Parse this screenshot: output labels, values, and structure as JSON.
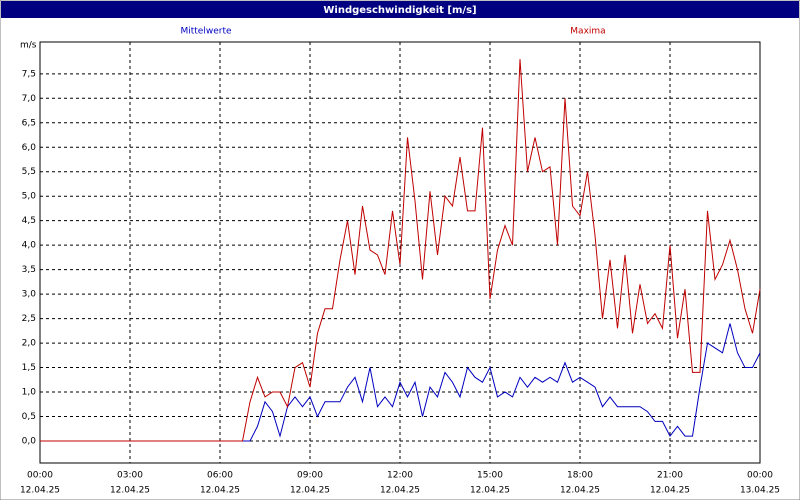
{
  "chart_data": {
    "type": "line",
    "title": "Windgeschwindigkeit [m/s]",
    "y_unit": "m/s",
    "x": [
      0,
      6.75,
      7,
      7.25,
      7.5,
      7.75,
      8,
      8.25,
      8.5,
      8.75,
      9,
      9.25,
      9.5,
      9.75,
      10,
      10.25,
      10.5,
      10.75,
      11,
      11.25,
      11.5,
      11.75,
      12,
      12.25,
      12.5,
      12.75,
      13,
      13.25,
      13.5,
      13.75,
      14,
      14.25,
      14.5,
      14.75,
      15,
      15.25,
      15.5,
      15.75,
      16,
      16.25,
      16.5,
      16.75,
      17,
      17.25,
      17.5,
      17.75,
      18,
      18.25,
      18.5,
      18.75,
      19,
      19.25,
      19.5,
      19.75,
      20,
      20.25,
      20.5,
      20.75,
      21,
      21.25,
      21.5,
      21.75,
      22,
      22.25,
      22.5,
      22.75,
      23,
      23.25,
      23.5,
      23.75,
      24
    ],
    "series": [
      {
        "name": "Mittelwerte",
        "color": "#0000c0",
        "values": [
          0,
          0,
          0,
          0.3,
          0.8,
          0.6,
          0.1,
          0.7,
          0.9,
          0.7,
          0.9,
          0.5,
          0.8,
          0.8,
          0.8,
          1.1,
          1.3,
          0.8,
          1.5,
          0.7,
          0.9,
          0.7,
          1.2,
          0.9,
          1.2,
          0.5,
          1.1,
          0.9,
          1.4,
          1.2,
          0.9,
          1.5,
          1.3,
          1.2,
          1.5,
          0.9,
          1.0,
          0.9,
          1.3,
          1.1,
          1.3,
          1.2,
          1.3,
          1.2,
          1.6,
          1.2,
          1.3,
          1.2,
          1.1,
          0.7,
          0.9,
          0.7,
          0.7,
          0.7,
          0.7,
          0.6,
          0.4,
          0.4,
          0.1,
          0.3,
          0.1,
          0.1,
          1.1,
          2.0,
          1.9,
          1.8,
          2.4,
          1.8,
          1.5,
          1.5,
          1.8
        ]
      },
      {
        "name": "Maxima",
        "color": "#c00000",
        "values": [
          0,
          0,
          0.8,
          1.3,
          0.9,
          1.0,
          1.0,
          0.7,
          1.5,
          1.6,
          1.1,
          2.2,
          2.7,
          2.7,
          3.7,
          4.5,
          3.4,
          4.8,
          3.9,
          3.8,
          3.4,
          4.7,
          3.6,
          6.2,
          4.9,
          3.3,
          5.1,
          3.8,
          5.0,
          4.8,
          5.8,
          4.7,
          4.7,
          6.4,
          2.9,
          3.9,
          4.4,
          4.0,
          7.8,
          5.5,
          6.2,
          5.5,
          5.6,
          4.0,
          7.0,
          4.8,
          4.6,
          5.5,
          4.2,
          2.5,
          3.7,
          2.3,
          3.8,
          2.2,
          3.2,
          2.4,
          2.6,
          2.3,
          4.0,
          2.1,
          3.1,
          1.4,
          1.4,
          4.7,
          3.3,
          3.6,
          4.1,
          3.5,
          2.7,
          2.2,
          3.1
        ]
      }
    ],
    "xlim": [
      0,
      24
    ],
    "xticks": [
      {
        "value": 0,
        "label": "00:00",
        "date": "12.04.25"
      },
      {
        "value": 3,
        "label": "03:00",
        "date": "12.04.25"
      },
      {
        "value": 6,
        "label": "06:00",
        "date": "12.04.25"
      },
      {
        "value": 9,
        "label": "09:00",
        "date": "12.04.25"
      },
      {
        "value": 12,
        "label": "12:00",
        "date": "12.04.25"
      },
      {
        "value": 15,
        "label": "15:00",
        "date": "12.04.25"
      },
      {
        "value": 18,
        "label": "18:00",
        "date": "12.04.25"
      },
      {
        "value": 21,
        "label": "21:00",
        "date": "12.04.25"
      },
      {
        "value": 24,
        "label": "00:00",
        "date": "13.04.25"
      }
    ],
    "ylim": [
      -0.45,
      8.15
    ],
    "yticks": [
      {
        "value": 0,
        "label": "0,0"
      },
      {
        "value": 0.5,
        "label": "0,5"
      },
      {
        "value": 1,
        "label": "1,0"
      },
      {
        "value": 1.5,
        "label": "1,5"
      },
      {
        "value": 2,
        "label": "2,0"
      },
      {
        "value": 2.5,
        "label": "2,5"
      },
      {
        "value": 3,
        "label": "3,0"
      },
      {
        "value": 3.5,
        "label": "3,5"
      },
      {
        "value": 4,
        "label": "4,0"
      },
      {
        "value": 4.5,
        "label": "4,5"
      },
      {
        "value": 5,
        "label": "5,0"
      },
      {
        "value": 5.5,
        "label": "5,5"
      },
      {
        "value": 6,
        "label": "6,0"
      },
      {
        "value": 6.5,
        "label": "6,5"
      },
      {
        "value": 7,
        "label": "7,0"
      },
      {
        "value": 7.5,
        "label": "7,5"
      }
    ],
    "grid": true
  }
}
